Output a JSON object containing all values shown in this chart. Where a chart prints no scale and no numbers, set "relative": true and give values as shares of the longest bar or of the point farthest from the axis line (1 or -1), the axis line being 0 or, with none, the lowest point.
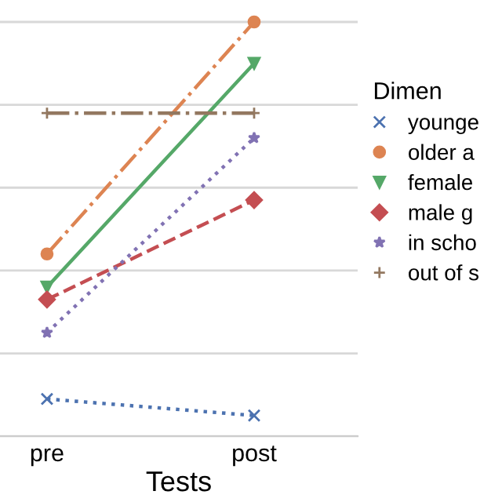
{
  "chart_data": {
    "type": "line",
    "xlabel": "Tests",
    "categories": [
      "pre",
      "post"
    ],
    "relative": true,
    "grid": "y",
    "legend": "right",
    "legend_title": "Dimen",
    "series": [
      {
        "name": "younge",
        "color": "#4c72b0",
        "values": [
          0.09,
          0.05
        ],
        "marker": "cross",
        "line_style": "dotted"
      },
      {
        "name": "older a",
        "color": "#dd8452",
        "values": [
          0.44,
          1
        ],
        "marker": "circle",
        "line_style": "dashdot"
      },
      {
        "name": "female",
        "color": "#55a868",
        "values": [
          0.36,
          0.9
        ],
        "marker": "triangle",
        "line_style": "solid"
      },
      {
        "name": "male g",
        "color": "#c44e52",
        "values": [
          0.33,
          0.57
        ],
        "marker": "diamond",
        "line_style": "dashed"
      },
      {
        "name": "in scho",
        "color": "#8172b3",
        "values": [
          0.25,
          0.72
        ],
        "marker": "star",
        "line_style": "dotted"
      },
      {
        "name": "out of s",
        "color": "#937860",
        "values": [
          0.78,
          0.78
        ],
        "marker": "plus",
        "line_style": "dashdot"
      }
    ]
  }
}
